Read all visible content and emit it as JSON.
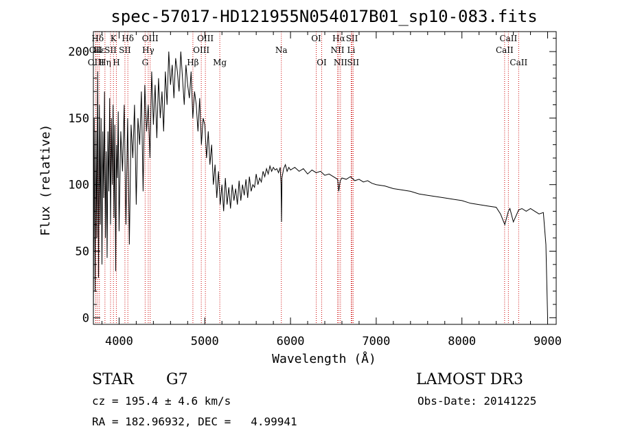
{
  "chart_data": {
    "type": "line",
    "title": "spec-57017-HD121955N054017B01_sp10-083.fits",
    "xlabel": "Wavelength (Å)",
    "ylabel": "Flux (relative)",
    "xlim": [
      3700,
      9100
    ],
    "ylim": [
      -5,
      215
    ],
    "xticks": [
      4000,
      5000,
      6000,
      7000,
      8000,
      9000
    ],
    "yticks": [
      0,
      50,
      100,
      150,
      200
    ],
    "series": [
      {
        "name": "flux",
        "x": [
          3700,
          3710,
          3720,
          3730,
          3740,
          3750,
          3760,
          3770,
          3780,
          3790,
          3800,
          3810,
          3820,
          3830,
          3840,
          3850,
          3860,
          3870,
          3880,
          3890,
          3900,
          3910,
          3920,
          3930,
          3940,
          3950,
          3960,
          3970,
          3980,
          3990,
          4000,
          4020,
          4040,
          4060,
          4080,
          4100,
          4120,
          4140,
          4160,
          4180,
          4200,
          4220,
          4240,
          4260,
          4280,
          4300,
          4320,
          4340,
          4360,
          4380,
          4400,
          4420,
          4440,
          4460,
          4480,
          4500,
          4520,
          4540,
          4560,
          4580,
          4600,
          4620,
          4640,
          4660,
          4680,
          4700,
          4720,
          4740,
          4760,
          4780,
          4800,
          4820,
          4840,
          4860,
          4880,
          4900,
          4920,
          4940,
          4960,
          4980,
          5000,
          5020,
          5040,
          5060,
          5080,
          5100,
          5120,
          5140,
          5160,
          5180,
          5200,
          5220,
          5240,
          5260,
          5280,
          5300,
          5320,
          5340,
          5360,
          5380,
          5400,
          5420,
          5440,
          5460,
          5480,
          5500,
          5520,
          5540,
          5560,
          5580,
          5600,
          5620,
          5640,
          5660,
          5680,
          5700,
          5720,
          5740,
          5760,
          5780,
          5800,
          5820,
          5840,
          5860,
          5880,
          5890,
          5895,
          5900,
          5920,
          5940,
          5960,
          5980,
          6000,
          6050,
          6100,
          6150,
          6200,
          6250,
          6300,
          6350,
          6400,
          6450,
          6500,
          6550,
          6563,
          6580,
          6600,
          6650,
          6700,
          6750,
          6800,
          6850,
          6900,
          6950,
          7000,
          7100,
          7200,
          7300,
          7400,
          7500,
          7600,
          7700,
          7800,
          7900,
          8000,
          8100,
          8200,
          8300,
          8400,
          8450,
          8500,
          8542,
          8560,
          8600,
          8662,
          8700,
          8750,
          8800,
          8850,
          8900,
          8950,
          8980,
          9000
        ],
        "values": [
          0,
          150,
          20,
          140,
          60,
          185,
          30,
          160,
          70,
          150,
          40,
          140,
          90,
          170,
          60,
          125,
          45,
          140,
          95,
          165,
          70,
          150,
          100,
          160,
          75,
          145,
          35,
          130,
          105,
          155,
          65,
          140,
          110,
          160,
          70,
          150,
          55,
          145,
          120,
          160,
          85,
          150,
          130,
          170,
          95,
          175,
          140,
          160,
          120,
          185,
          145,
          175,
          135,
          180,
          150,
          170,
          140,
          185,
          160,
          200,
          175,
          190,
          165,
          195,
          185,
          170,
          200,
          180,
          160,
          190,
          175,
          165,
          185,
          150,
          170,
          160,
          140,
          165,
          130,
          150,
          145,
          120,
          140,
          115,
          130,
          100,
          115,
          90,
          110,
          85,
          100,
          80,
          105,
          85,
          98,
          82,
          100,
          88,
          97,
          85,
          103,
          88,
          100,
          92,
          104,
          90,
          106,
          95,
          100,
          98,
          108,
          100,
          105,
          102,
          110,
          106,
          112,
          108,
          114,
          110,
          113,
          111,
          112,
          109,
          113,
          100,
          72,
          105,
          112,
          115,
          110,
          113,
          111,
          113,
          110,
          112,
          108,
          111,
          109,
          110,
          107,
          108,
          106,
          104,
          95,
          103,
          105,
          104,
          106,
          103,
          104,
          102,
          103,
          101,
          100,
          99,
          97,
          96,
          95,
          93,
          92,
          91,
          90,
          89,
          88,
          86,
          85,
          84,
          83,
          78,
          70,
          80,
          82,
          72,
          81,
          82,
          80,
          82,
          80,
          78,
          79,
          55,
          0
        ]
      }
    ],
    "lines": [
      {
        "label": "Hδ",
        "x": 3750,
        "row": 0
      },
      {
        "label": "OII",
        "x": 3727,
        "row": 1
      },
      {
        "label": "OIII",
        "x": 3730,
        "row": 2
      },
      {
        "label": "Hε",
        "x": 3770,
        "row": 1
      },
      {
        "label": "Hη",
        "x": 3835,
        "row": 2
      },
      {
        "label": "K",
        "x": 3934,
        "row": 0
      },
      {
        "label": "SII",
        "x": 3900,
        "row": 1
      },
      {
        "label": "H",
        "x": 3968,
        "row": 2
      },
      {
        "label": "Hδ",
        "x": 4102,
        "row": 0
      },
      {
        "label": "SII",
        "x": 4068,
        "row": 1
      },
      {
        "label": "OIII",
        "x": 4363,
        "row": 0
      },
      {
        "label": "Hγ",
        "x": 4340,
        "row": 1
      },
      {
        "label": "G",
        "x": 4304,
        "row": 2
      },
      {
        "label": "Hβ",
        "x": 4861,
        "row": 2
      },
      {
        "label": "OIII",
        "x": 5007,
        "row": 0
      },
      {
        "label": "OIII",
        "x": 4959,
        "row": 1
      },
      {
        "label": "Mg",
        "x": 5175,
        "row": 2
      },
      {
        "label": "Na",
        "x": 5893,
        "row": 1
      },
      {
        "label": "OI",
        "x": 6300,
        "row": 0
      },
      {
        "label": "OI",
        "x": 6364,
        "row": 2
      },
      {
        "label": "Hα",
        "x": 6563,
        "row": 0
      },
      {
        "label": "NII",
        "x": 6548,
        "row": 1
      },
      {
        "label": "NII",
        "x": 6583,
        "row": 2
      },
      {
        "label": "SII",
        "x": 6717,
        "row": 0
      },
      {
        "label": "Li",
        "x": 6708,
        "row": 1
      },
      {
        "label": "SII",
        "x": 6731,
        "row": 2
      },
      {
        "label": "CaII",
        "x": 8542,
        "row": 0
      },
      {
        "label": "CaII",
        "x": 8498,
        "row": 1
      },
      {
        "label": "CaII",
        "x": 8662,
        "row": 2
      }
    ]
  },
  "info": {
    "class": "STAR",
    "subclass": "G7",
    "survey": "LAMOST DR3",
    "cz": "cz = 195.4 ± 4.6 km/s",
    "obs_date": "Obs-Date: 20141225",
    "coords": "RA = 182.96932, DEC =   4.99941"
  }
}
